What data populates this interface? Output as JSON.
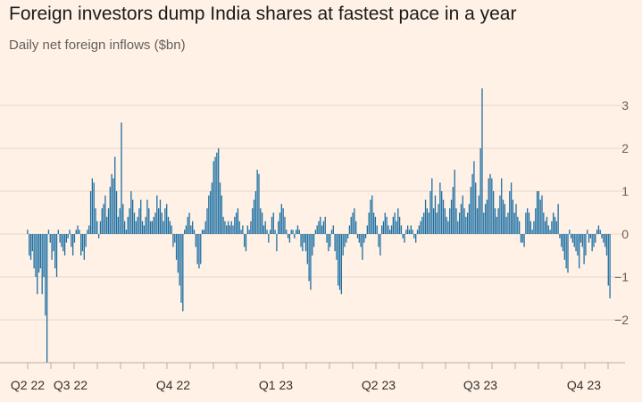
{
  "title": "Foreign investors dump India shares at fastest pace in a year",
  "subtitle": "Daily net foreign inflows ($bn)",
  "colors": {
    "background": "#fff1e5",
    "bar": "#1d6fa3",
    "grid": "#e3d6ca"
  },
  "chart_data": {
    "type": "bar",
    "title": "Foreign investors dump India shares at fastest pace in a year",
    "ylabel": "Daily net foreign inflows ($bn)",
    "xlabel": "",
    "ylim": [
      -3,
      3.5
    ],
    "y_ticks": [
      3,
      2,
      1,
      0,
      -1,
      -2
    ],
    "x_tick_labels": [
      "Q2 22",
      "Q3 22",
      "Q4 22",
      "Q1 23",
      "Q2 23",
      "Q3 23",
      "Q4 23"
    ],
    "grid": true,
    "values": [
      0.1,
      -0.5,
      -0.6,
      -0.4,
      -0.8,
      -1.0,
      -1.4,
      -0.9,
      -0.8,
      -1.4,
      -1.0,
      -1.9,
      -3.0,
      0.1,
      -0.2,
      -0.6,
      -0.4,
      -0.8,
      -1.0,
      0.1,
      -0.2,
      -0.3,
      -0.4,
      -0.5,
      -0.2,
      -0.1,
      0.1,
      -0.3,
      -0.5,
      -0.2,
      0.1,
      0.2,
      0.1,
      -0.5,
      -0.4,
      -0.6,
      -0.3,
      0.1,
      0.2,
      1.0,
      1.3,
      1.2,
      0.6,
      0.3,
      -0.1,
      0.3,
      0.6,
      0.7,
      0.9,
      0.4,
      0.6,
      1.1,
      1.4,
      1.3,
      1.8,
      1.0,
      0.4,
      0.6,
      2.6,
      0.7,
      0.3,
      0.1,
      0.4,
      0.6,
      1.0,
      0.8,
      0.5,
      0.3,
      0.4,
      0.6,
      0.8,
      0.3,
      0.2,
      0.4,
      0.8,
      0.6,
      0.3,
      0.3,
      0.4,
      0.5,
      0.9,
      0.6,
      0.8,
      0.5,
      0.3,
      0.6,
      0.7,
      0.4,
      0.3,
      0.2,
      -0.3,
      -0.2,
      -0.6,
      -0.9,
      -1.2,
      -1.6,
      -1.8,
      0.1,
      0.2,
      0.4,
      0.5,
      0.2,
      0.3,
      0.1,
      -0.3,
      -0.7,
      -0.8,
      -0.7,
      0.1,
      0.1,
      0.3,
      0.6,
      0.9,
      1.0,
      1.2,
      1.7,
      1.8,
      1.9,
      2.0,
      1.2,
      0.9,
      0.4,
      0.3,
      0.2,
      0.3,
      0.2,
      0.3,
      0.2,
      0.4,
      0.5,
      0.6,
      0.3,
      0.1,
      0.2,
      -0.3,
      -0.4,
      0.2,
      0.1,
      0.3,
      0.6,
      0.8,
      1.0,
      1.5,
      1.4,
      0.6,
      0.5,
      0.2,
      0.3,
      0.1,
      -0.2,
      0.1,
      0.4,
      0.5,
      0.1,
      -0.4,
      0.3,
      0.5,
      0.7,
      0.6,
      0.4,
      0.1,
      -0.1,
      -0.2,
      0.1,
      0.1,
      -0.1,
      0.1,
      0.2,
      0.1,
      -0.3,
      -0.4,
      -0.2,
      -0.4,
      -0.7,
      -1.1,
      -1.3,
      -0.5,
      -0.3,
      0.1,
      0.2,
      0.3,
      0.4,
      0.2,
      0.3,
      0.4,
      -0.2,
      -0.4,
      -0.3,
      0.1,
      0.2,
      -0.4,
      -0.6,
      -1.2,
      -1.3,
      -1.4,
      -0.5,
      -0.3,
      -0.2,
      -0.1,
      0.2,
      0.4,
      0.5,
      0.6,
      0.3,
      -0.1,
      -0.2,
      -0.3,
      -0.6,
      -0.2,
      -0.1,
      0.2,
      0.5,
      0.8,
      0.9,
      0.5,
      0.4,
      0.2,
      -0.3,
      -0.5,
      0.2,
      0.3,
      0.5,
      0.4,
      0.2,
      0.1,
      0.2,
      0.4,
      0.5,
      0.3,
      0.6,
      0.4,
      0.2,
      -0.1,
      -0.2,
      0.1,
      0.2,
      0.1,
      0.2,
      0.1,
      -0.1,
      -0.2,
      0.1,
      0.2,
      0.3,
      0.4,
      0.5,
      0.8,
      0.6,
      0.5,
      1.0,
      1.3,
      0.6,
      0.9,
      0.5,
      0.7,
      1.2,
      1.0,
      0.8,
      0.6,
      0.4,
      0.3,
      0.6,
      0.8,
      1.1,
      1.5,
      0.6,
      0.3,
      0.5,
      0.7,
      0.9,
      0.6,
      0.4,
      0.5,
      0.7,
      1.1,
      1.4,
      1.7,
      1.2,
      0.6,
      0.9,
      2.0,
      3.4,
      0.5,
      0.7,
      0.8,
      1.3,
      1.4,
      1.3,
      1.0,
      0.6,
      0.4,
      0.6,
      0.9,
      1.3,
      0.8,
      0.7,
      0.4,
      0.5,
      1.0,
      1.2,
      0.8,
      0.5,
      0.7,
      0.4,
      0.3,
      -0.2,
      -0.2,
      -0.3,
      0.5,
      0.6,
      0.5,
      0.3,
      0.1,
      0.3,
      0.6,
      1.0,
      1.0,
      0.8,
      0.9,
      0.5,
      0.3,
      0.4,
      0.2,
      0.1,
      0.3,
      0.5,
      0.4,
      0.3,
      0.7,
      -0.1,
      -0.3,
      -0.4,
      -0.6,
      -0.8,
      -0.9,
      0.1,
      -0.1,
      -0.2,
      -0.3,
      -0.4,
      -0.5,
      -0.8,
      -0.2,
      -0.3,
      -0.7,
      -0.5,
      0.1,
      -0.2,
      -0.1,
      -0.4,
      -0.3,
      -0.2,
      0.1,
      0.2,
      0.1,
      -0.1,
      -0.2,
      -0.3,
      -0.5,
      -1.2,
      -1.5
    ]
  }
}
